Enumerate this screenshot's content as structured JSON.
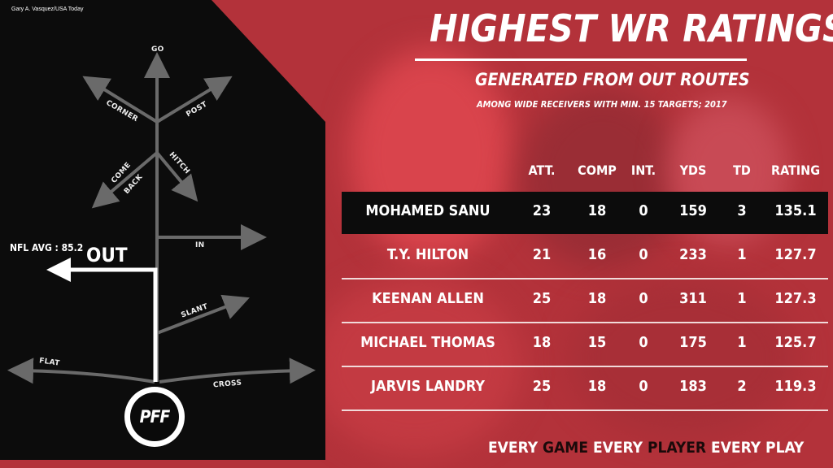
{
  "credit": "Gary A. Vasquez/USA Today",
  "colors": {
    "background": "#b3323a",
    "panel": "#0c0c0c",
    "route_gray": "#6a6a6a",
    "highlight_route": "#ffffff"
  },
  "routes": {
    "go": "GO",
    "corner": "CORNER",
    "post": "POST",
    "come": "COME",
    "back": "BACK",
    "hitch": "HITCH",
    "in": "IN",
    "slant": "SLANT",
    "flat": "FLAT",
    "cross": "CROSS",
    "out": "OUT"
  },
  "nfl_avg": "NFL AVG :  85.2",
  "logo": "PFF",
  "title": "HIGHEST WR RATINGS",
  "subtitle": "GENERATED FROM OUT ROUTES",
  "subsubtitle": "AMONG WIDE RECEIVERS WITH MIN. 15 TARGETS; 2017",
  "table": {
    "headers": [
      "ATT.",
      "COMP",
      "INT.",
      "YDS",
      "TD",
      "RATING"
    ],
    "rows": [
      {
        "name": "MOHAMED SANU",
        "att": "23",
        "comp": "18",
        "int": "0",
        "yds": "159",
        "td": "3",
        "rating": "135.1"
      },
      {
        "name": "T.Y. HILTON",
        "att": "21",
        "comp": "16",
        "int": "0",
        "yds": "233",
        "td": "1",
        "rating": "127.7"
      },
      {
        "name": "KEENAN ALLEN",
        "att": "25",
        "comp": "18",
        "int": "0",
        "yds": "311",
        "td": "1",
        "rating": "127.3"
      },
      {
        "name": "MICHAEL THOMAS",
        "att": "18",
        "comp": "15",
        "int": "0",
        "yds": "175",
        "td": "1",
        "rating": "125.7"
      },
      {
        "name": "JARVIS LANDRY",
        "att": "25",
        "comp": "18",
        "int": "0",
        "yds": "183",
        "td": "2",
        "rating": "119.3"
      }
    ]
  },
  "footer": {
    "part1": "EVERY ",
    "part2": "GAME",
    "part3": " EVERY ",
    "part4": "PLAYER",
    "part5": " EVERY PLAY"
  }
}
